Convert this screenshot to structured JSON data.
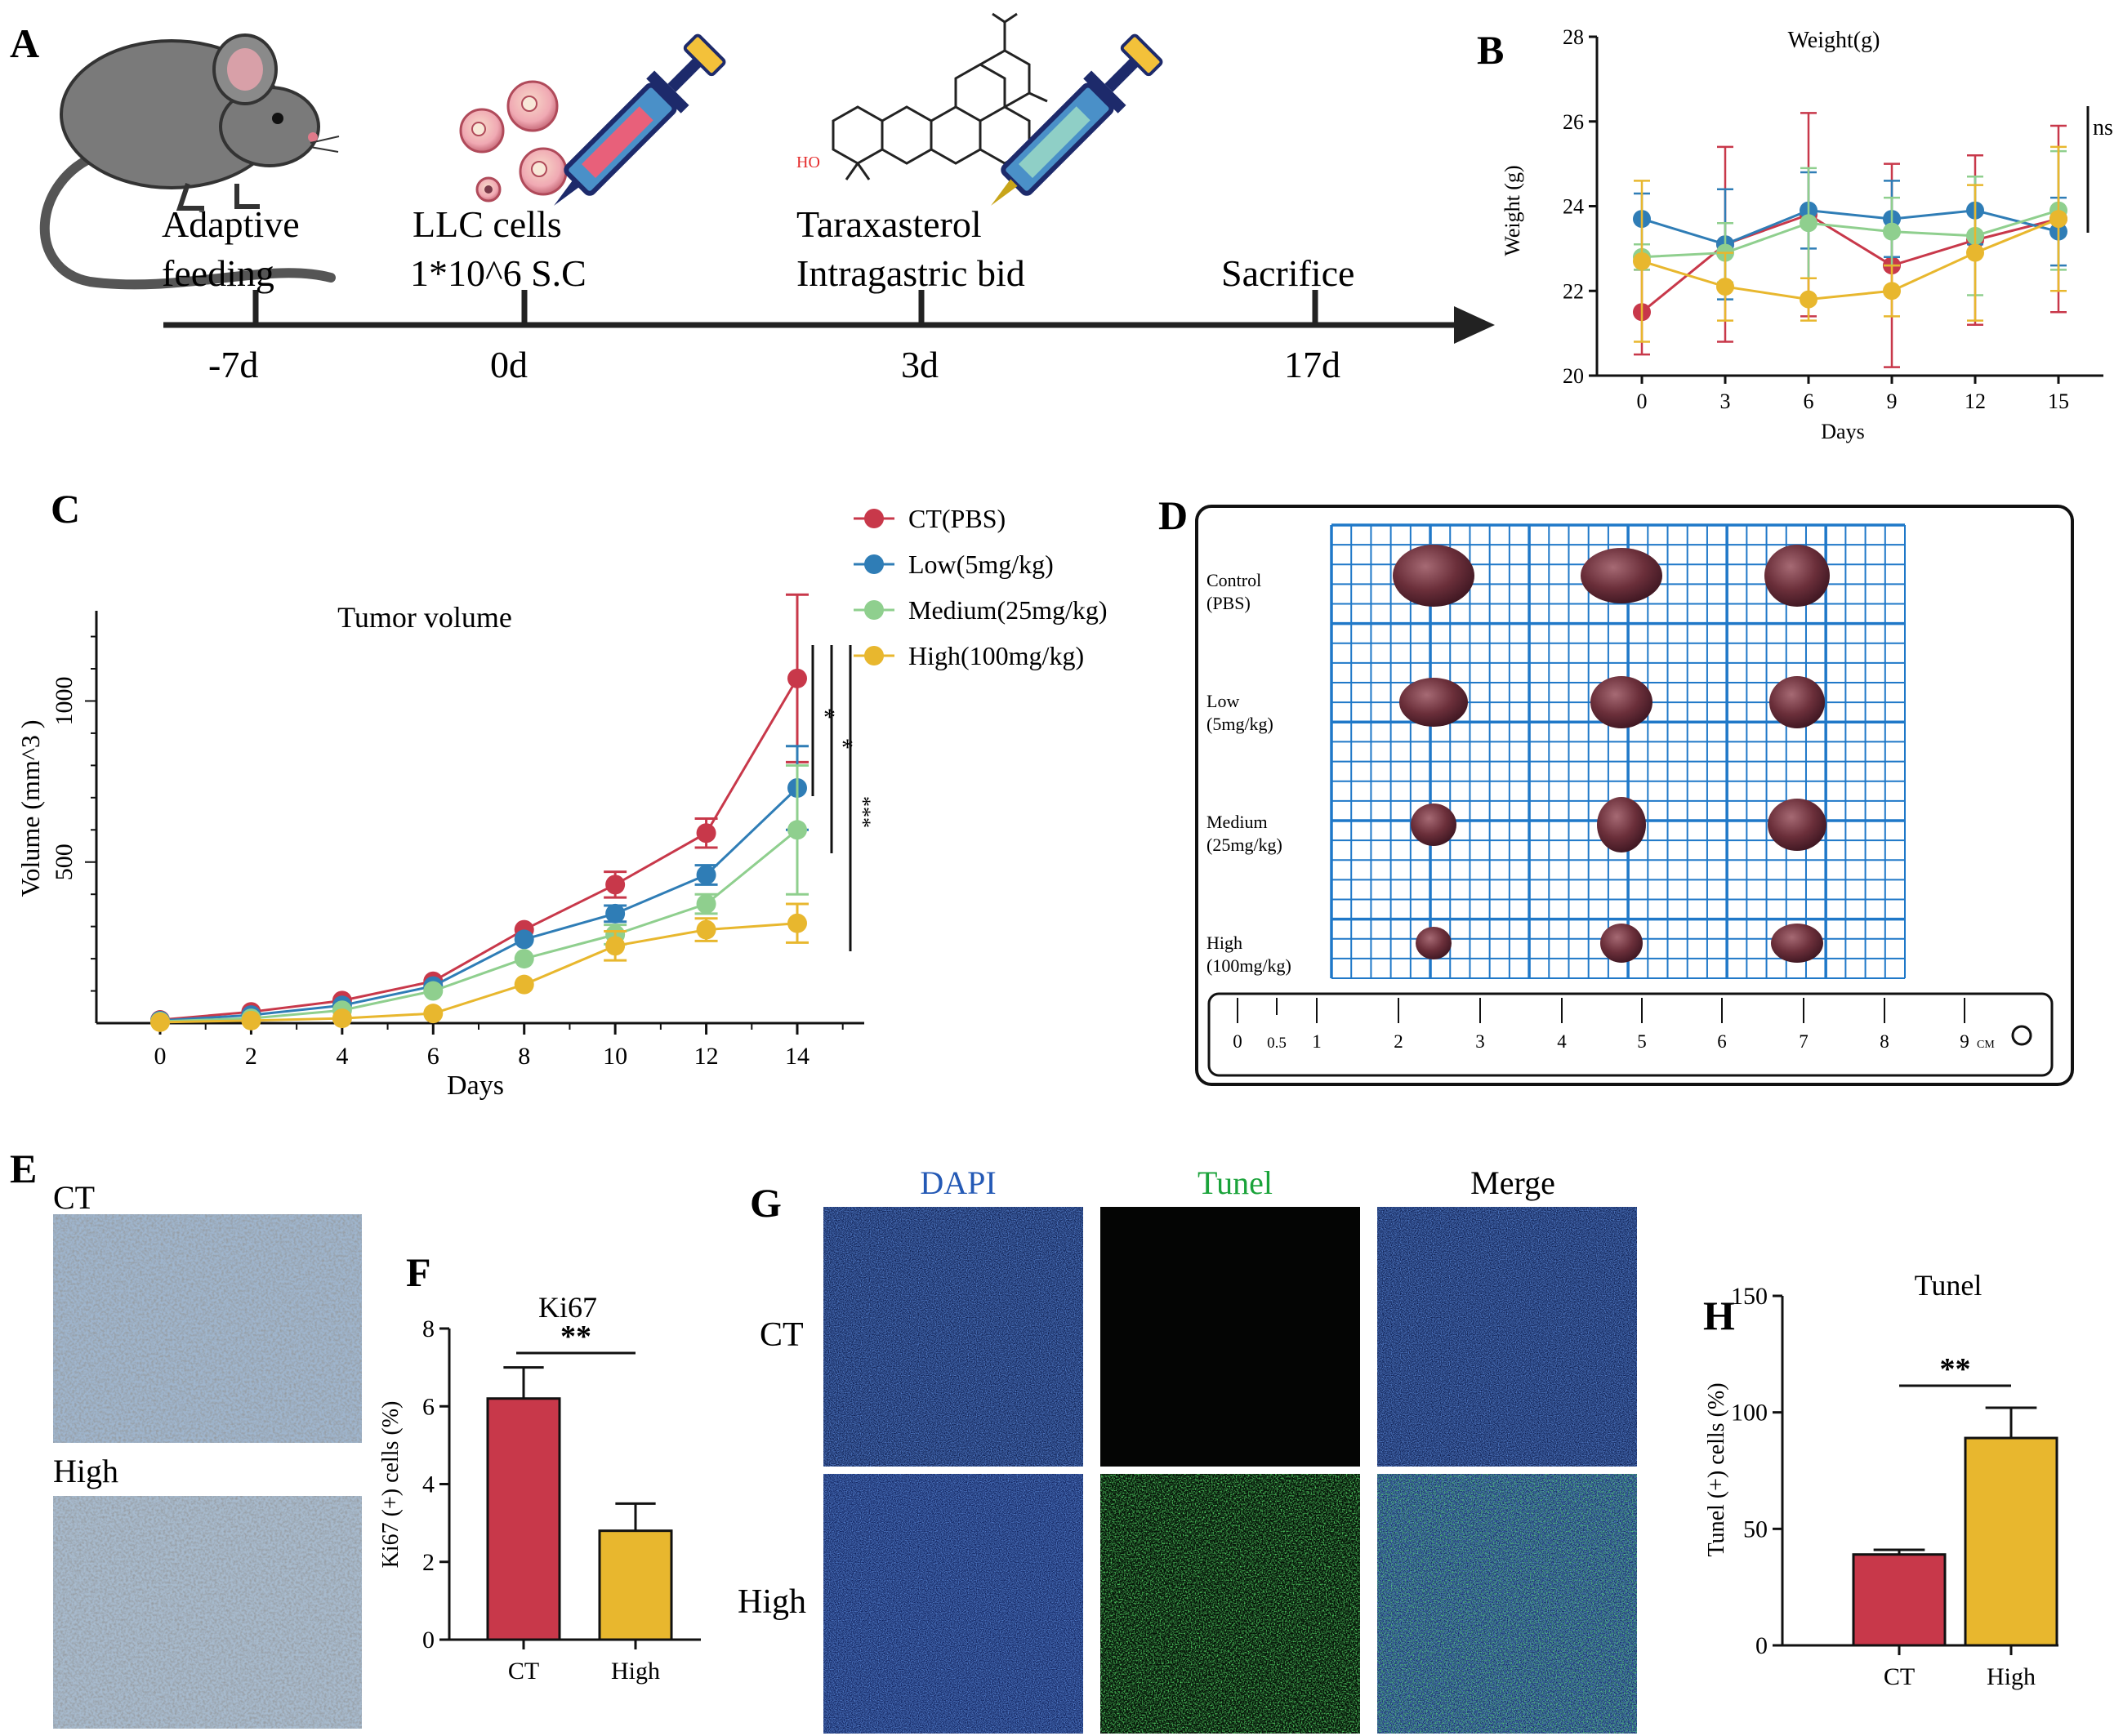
{
  "panels": {
    "A": "A",
    "B": "B",
    "C": "C",
    "D": "D",
    "E": "E",
    "F": "F",
    "G": "G",
    "H": "H"
  },
  "colors": {
    "ct": "#c8384a",
    "low": "#2f7db6",
    "medium": "#8fcf8e",
    "high": "#e8b72e",
    "grid": "#1f78c8",
    "dapi": "#2459b5",
    "tunel": "#1aa33a"
  },
  "panelA": {
    "labels": {
      "adaptive1": "Adaptive",
      "adaptive2": "feeding",
      "llc1": "LLC  cells",
      "llc2": "1*10^6   S.C",
      "tara1": "Taraxasterol",
      "tara2": "Intragastric bid",
      "sac": "Sacrifice"
    },
    "timepoints": [
      "-7d",
      "0d",
      "3d",
      "17d"
    ],
    "ho_label": "HO"
  },
  "chart_data": [
    {
      "id": "B",
      "type": "line",
      "title": "Weight(g)",
      "xlabel": "Days",
      "ylabel": "Weight (g)",
      "x": [
        0,
        3,
        6,
        9,
        12,
        15
      ],
      "xticks": [
        "0",
        "3",
        "6",
        "9",
        "12",
        "15"
      ],
      "ylim": [
        20,
        28
      ],
      "yticks": [
        "20",
        "22",
        "24",
        "26",
        "28"
      ],
      "series": [
        {
          "name": "CT(PBS)",
          "key": "ct",
          "values": [
            21.5,
            23.1,
            23.8,
            22.6,
            23.2,
            23.7
          ],
          "errors": [
            1.0,
            2.3,
            2.4,
            2.4,
            2.0,
            2.2
          ]
        },
        {
          "name": "Low(5mg/kg)",
          "key": "low",
          "values": [
            23.7,
            23.1,
            23.9,
            23.7,
            23.9,
            23.4
          ],
          "errors": [
            0.6,
            1.3,
            0.9,
            0.9,
            0.8,
            0.8
          ]
        },
        {
          "name": "Medium(25mg/kg)",
          "key": "medium",
          "values": [
            22.8,
            22.9,
            23.6,
            23.4,
            23.3,
            23.9
          ],
          "errors": [
            0.3,
            0.7,
            1.3,
            0.8,
            1.4,
            1.4
          ]
        },
        {
          "name": "High(100mg/kg)",
          "key": "high",
          "values": [
            22.7,
            22.1,
            21.8,
            22.0,
            22.9,
            23.7
          ],
          "errors": [
            1.9,
            0.8,
            0.5,
            0.6,
            1.6,
            1.7
          ]
        }
      ],
      "annotation": "ns"
    },
    {
      "id": "C",
      "type": "line",
      "title": "Tumor volume",
      "xlabel": "Days",
      "ylabel": "Volume (mm^3 )",
      "x": [
        0,
        2,
        4,
        6,
        8,
        10,
        12,
        14
      ],
      "xticks": [
        "0",
        "2",
        "4",
        "6",
        "8",
        "10",
        "12",
        "14"
      ],
      "ylim": [
        0,
        1280
      ],
      "yticks": [
        "500",
        "1000"
      ],
      "ytick_values": [
        500,
        1000
      ],
      "series": [
        {
          "name": "CT(PBS)",
          "key": "ct",
          "values": [
            10,
            35,
            70,
            130,
            290,
            430,
            590,
            1070
          ],
          "errors": [
            0,
            0,
            0,
            0,
            0,
            40,
            45,
            260
          ]
        },
        {
          "name": "Low(5mg/kg)",
          "key": "low",
          "values": [
            8,
            25,
            55,
            115,
            260,
            340,
            460,
            730
          ],
          "errors": [
            0,
            0,
            0,
            0,
            0,
            25,
            30,
            130
          ]
        },
        {
          "name": "Medium(25mg/kg)",
          "key": "medium",
          "values": [
            5,
            15,
            40,
            100,
            200,
            275,
            370,
            600
          ],
          "errors": [
            0,
            0,
            0,
            0,
            0,
            30,
            30,
            200
          ]
        },
        {
          "name": "High(100mg/kg)",
          "key": "high",
          "values": [
            3,
            8,
            15,
            30,
            120,
            240,
            290,
            310
          ],
          "errors": [
            0,
            0,
            0,
            0,
            0,
            45,
            35,
            60
          ]
        }
      ],
      "significance": [
        "*",
        "*",
        "***"
      ]
    },
    {
      "id": "F",
      "type": "bar",
      "title": "Ki67",
      "ylabel": "Ki67 (+) cells (%)",
      "categories": [
        "CT",
        "High"
      ],
      "values": [
        6.2,
        2.8
      ],
      "errors": [
        0.8,
        0.7
      ],
      "ylim": [
        0,
        8
      ],
      "yticks": [
        "0",
        "2",
        "4",
        "6",
        "8"
      ],
      "significance": "**"
    },
    {
      "id": "H",
      "type": "bar",
      "title": "Tunel",
      "ylabel": "Tunel (+) cells (%)",
      "categories": [
        "CT",
        "High"
      ],
      "values": [
        39,
        89
      ],
      "errors": [
        2,
        13
      ],
      "ylim": [
        0,
        150
      ],
      "yticks": [
        "0",
        "50",
        "100",
        "150"
      ],
      "significance": "**"
    }
  ],
  "panelD": {
    "rows": [
      "Control",
      "(PBS)",
      "Low",
      "(5mg/kg)",
      "Medium",
      "(25mg/kg)",
      "High",
      "(100mg/kg)"
    ],
    "ruler": [
      "0",
      "0.5",
      "1",
      "2",
      "3",
      "4",
      "5",
      "6",
      "7",
      "8",
      "9"
    ],
    "ruler_unit": "CM"
  },
  "panelE": {
    "ct": "CT",
    "high": "High"
  },
  "panelG": {
    "cols": [
      "DAPI",
      "Tunel",
      "Merge"
    ],
    "rows": [
      "CT",
      "High"
    ]
  }
}
